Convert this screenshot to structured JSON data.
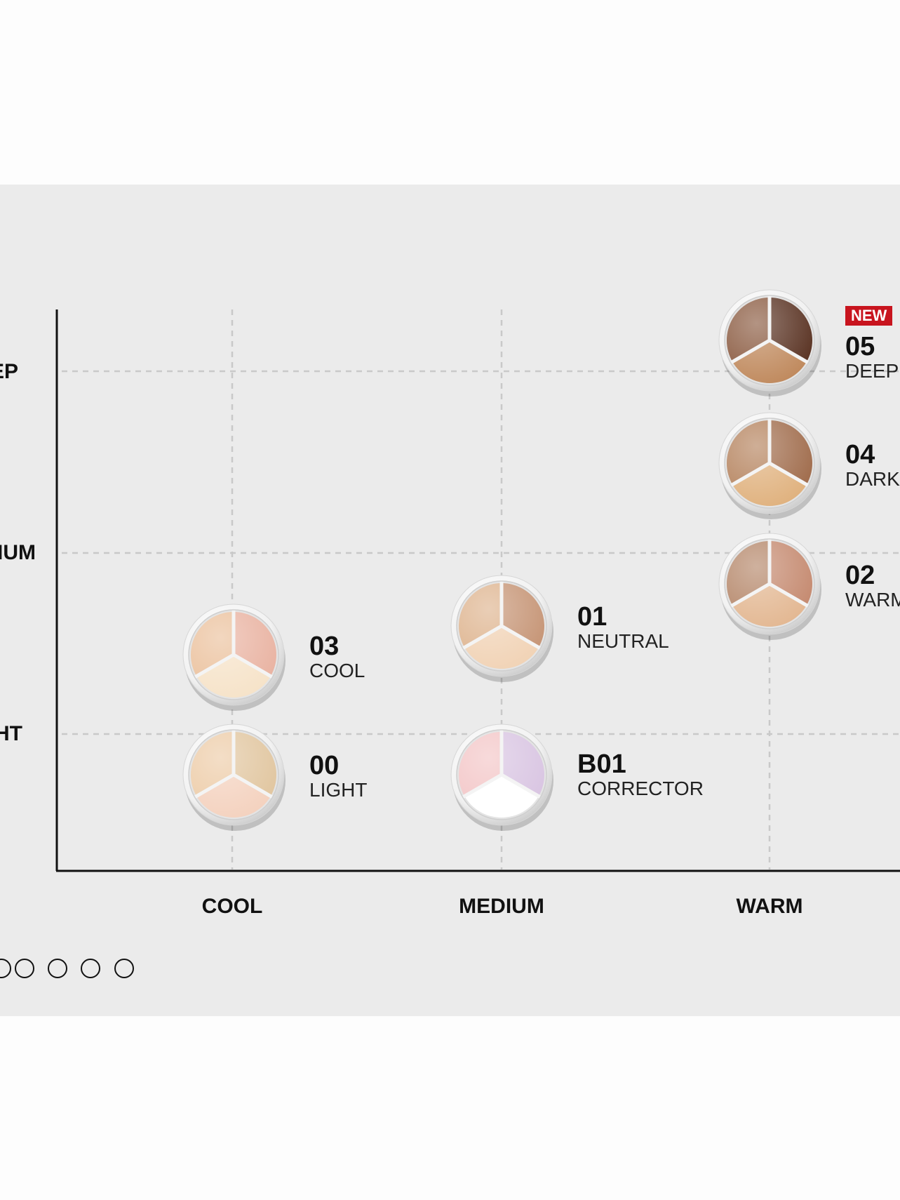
{
  "chart": {
    "y_axis_labels": [
      "DEEP",
      "MEDIUM",
      "LIGHT"
    ],
    "x_axis_labels": [
      "COOL",
      "MEDIUM",
      "WARM"
    ]
  },
  "badge": {
    "new": "NEW"
  },
  "shades": [
    {
      "code": "05",
      "name": "DEEP",
      "tone": "WARM",
      "depth": "DEEP",
      "is_new": true,
      "colors": [
        "#5a3323",
        "#8a5a40",
        "#c08a5e"
      ]
    },
    {
      "code": "04",
      "name": "DARK",
      "tone": "WARM",
      "depth": "MEDIUM-DEEP",
      "is_new": false,
      "colors": [
        "#a06c4c",
        "#b5835e",
        "#e0b27f"
      ]
    },
    {
      "code": "02",
      "name": "WARM",
      "tone": "WARM",
      "depth": "MEDIUM",
      "is_new": false,
      "colors": [
        "#c58a70",
        "#b5876a",
        "#e3b893"
      ]
    },
    {
      "code": "01",
      "name": "NEUTRAL",
      "tone": "MEDIUM",
      "depth": "LIGHT-MEDIUM",
      "is_new": false,
      "colors": [
        "#c69576",
        "#deb48f",
        "#f1d3b6"
      ]
    },
    {
      "code": "03",
      "name": "COOL",
      "tone": "COOL",
      "depth": "LIGHT-MEDIUM",
      "is_new": false,
      "colors": [
        "#e9b3a2",
        "#ebc19d",
        "#f6e3c9"
      ]
    },
    {
      "code": "00",
      "name": "LIGHT",
      "tone": "COOL",
      "depth": "LIGHT",
      "is_new": false,
      "colors": [
        "#e1c6a0",
        "#edcca8",
        "#f4d2bf"
      ]
    },
    {
      "code": "B01",
      "name": "CORRECTOR",
      "tone": "MEDIUM",
      "depth": "LIGHT",
      "is_new": false,
      "colors": [
        "#d9c5e2",
        "#f3c6c7",
        "#ffffff"
      ]
    }
  ],
  "pager": {
    "dot_count": 5
  }
}
